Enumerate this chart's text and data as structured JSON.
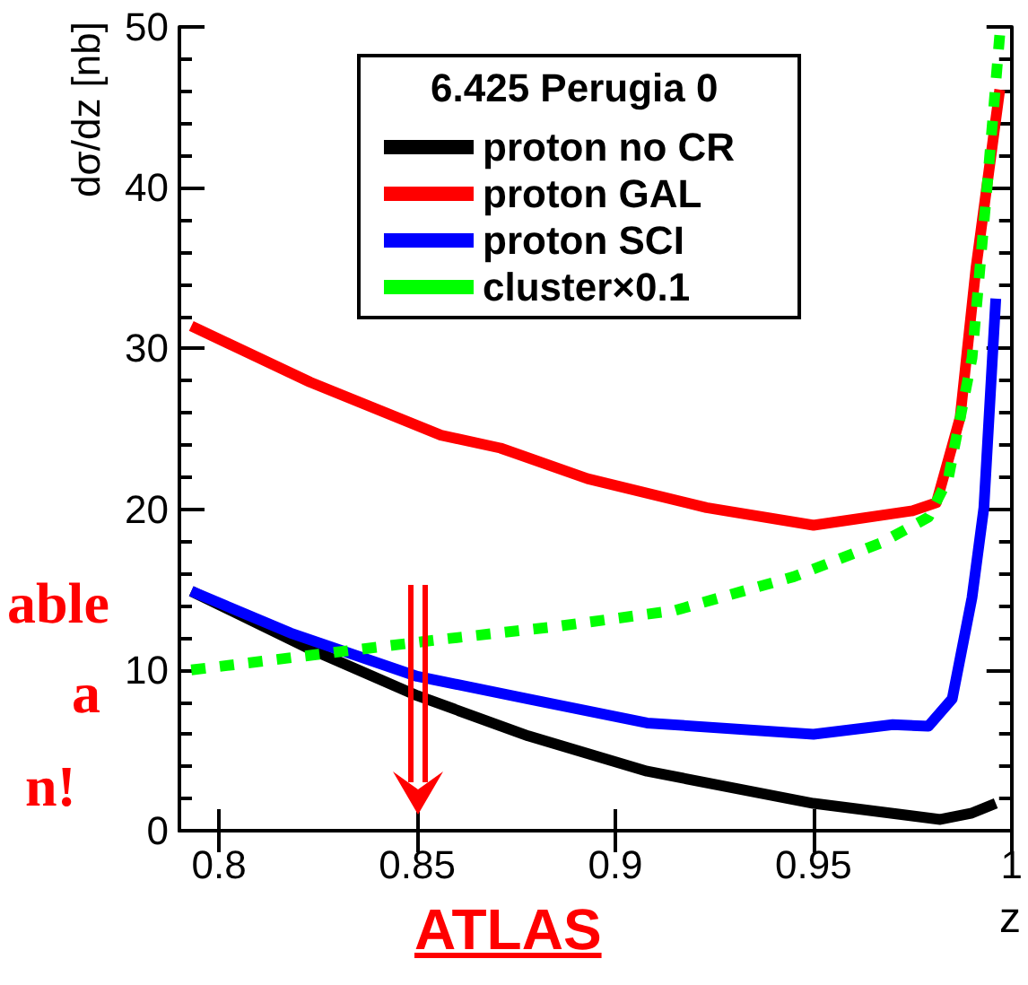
{
  "chart_data": {
    "type": "line",
    "xlabel": "z",
    "ylabel": "dσ/dz [nb]",
    "legend_title": "6.425 Perugia 0",
    "legend": "top",
    "grid": false,
    "xlim": [
      0.79,
      1.0
    ],
    "xticks": [
      0.8,
      0.85,
      0.9,
      0.95,
      1
    ],
    "ylim": [
      0,
      50
    ],
    "yticks": [
      0,
      10,
      20,
      30,
      40,
      50
    ],
    "annotations": [
      "ATLAS",
      "able",
      "a",
      "n!"
    ],
    "series": [
      {
        "name": "proton no CR",
        "color": "#000000",
        "line_style": "solid",
        "x": [
          0.793,
          0.823,
          0.85,
          0.878,
          0.908,
          0.95,
          0.982,
          0.99,
          0.996
        ],
        "values": [
          14.9,
          11.3,
          8.4,
          5.9,
          3.7,
          1.7,
          0.7,
          1.1,
          1.7
        ]
      },
      {
        "name": "proton GAL",
        "color": "#ff0000",
        "line_style": "solid",
        "x": [
          0.793,
          0.823,
          0.856,
          0.871,
          0.893,
          0.923,
          0.95,
          0.975,
          0.981,
          0.987,
          0.991,
          0.997
        ],
        "values": [
          31.4,
          27.9,
          24.6,
          23.8,
          21.9,
          20.1,
          19.0,
          19.9,
          20.4,
          25.7,
          35.0,
          46.1
        ]
      },
      {
        "name": "proton SCI",
        "color": "#0000ff",
        "line_style": "solid",
        "x": [
          0.793,
          0.818,
          0.85,
          0.878,
          0.908,
          0.95,
          0.97,
          0.979,
          0.985,
          0.99,
          0.993,
          0.996
        ],
        "values": [
          14.9,
          12.3,
          9.6,
          8.2,
          6.7,
          6.0,
          6.6,
          6.5,
          8.2,
          14.5,
          20.1,
          33.1
        ]
      },
      {
        "name": "cluster×0.1",
        "color": "#00ff00",
        "line_style": "dashed",
        "x": [
          0.793,
          0.826,
          0.856,
          0.885,
          0.915,
          0.945,
          0.967,
          0.979,
          0.984,
          0.99,
          0.994,
          0.997
        ],
        "values": [
          10.0,
          11.0,
          11.9,
          12.7,
          13.7,
          15.8,
          17.9,
          19.5,
          21.9,
          29.4,
          40.6,
          49.5
        ]
      }
    ]
  }
}
